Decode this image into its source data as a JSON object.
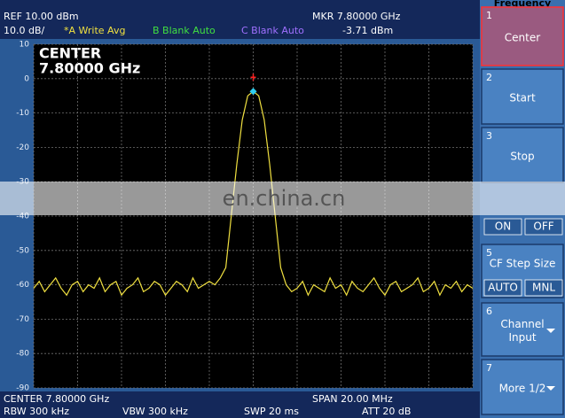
{
  "header": {
    "ref": "REF  10.00 dBm",
    "mkr": "MKR 7.80000 GHz",
    "scale": "10.0 dB/",
    "trace_a": "*A Write Avg",
    "trace_b": "B Blank Auto",
    "trace_c": "C Blank Auto",
    "mkr_value": "-3.71 dBm"
  },
  "chart_data": {
    "type": "line",
    "annotation": [
      "CENTER",
      "7.80000 GHz"
    ],
    "color": "#f0e040",
    "x": [
      7.79,
      7.79025,
      7.7905,
      7.79075,
      7.791,
      7.79125,
      7.7915,
      7.79175,
      7.792,
      7.79225,
      7.7925,
      7.79275,
      7.793,
      7.79325,
      7.7935,
      7.79375,
      7.794,
      7.79425,
      7.7945,
      7.79475,
      7.795,
      7.79525,
      7.7955,
      7.79575,
      7.796,
      7.79625,
      7.7965,
      7.79675,
      7.797,
      7.79725,
      7.7975,
      7.79775,
      7.798,
      7.79825,
      7.7985,
      7.79875,
      7.799,
      7.79925,
      7.7995,
      7.79975,
      7.8,
      7.80025,
      7.8005,
      7.80075,
      7.801,
      7.80125,
      7.8015,
      7.80175,
      7.802,
      7.80225,
      7.8025,
      7.80275,
      7.803,
      7.80325,
      7.8035,
      7.80375,
      7.804,
      7.80425,
      7.8045,
      7.80475,
      7.805,
      7.80525,
      7.8055,
      7.80575,
      7.806,
      7.80625,
      7.8065,
      7.80675,
      7.807,
      7.80725,
      7.8075,
      7.80775,
      7.808,
      7.80825,
      7.8085,
      7.80875,
      7.809,
      7.80925,
      7.8095,
      7.80975,
      7.81
    ],
    "values": [
      -61,
      -59,
      -62,
      -60,
      -58,
      -61,
      -63,
      -60,
      -59,
      -62,
      -60,
      -61,
      -58,
      -62,
      -60,
      -59,
      -63,
      -61,
      -60,
      -58,
      -62,
      -61,
      -59,
      -60,
      -63,
      -61,
      -59,
      -60,
      -62,
      -58,
      -61,
      -60,
      -59,
      -60,
      -58,
      -55,
      -40,
      -25,
      -12,
      -5,
      -3.71,
      -5,
      -12,
      -25,
      -40,
      -55,
      -60,
      -62,
      -61,
      -59,
      -63,
      -60,
      -61,
      -62,
      -58,
      -61,
      -60,
      -63,
      -59,
      -61,
      -62,
      -60,
      -58,
      -61,
      -63,
      -60,
      -59,
      -62,
      -61,
      -60,
      -58,
      -62,
      -61,
      -59,
      -63,
      -60,
      -61,
      -59,
      -62,
      -60,
      -61
    ],
    "marker": {
      "x": 7.8,
      "y": -3.71
    },
    "xlim": [
      7.79,
      7.81
    ],
    "ylim": [
      -90,
      10
    ],
    "yticks": [
      10,
      0,
      -10,
      -20,
      -30,
      -40,
      -50,
      -60,
      -70,
      -80,
      -90
    ],
    "grid": true
  },
  "footer": {
    "center": "CENTER 7.80000 GHz",
    "span": "SPAN 20.00 MHz",
    "rbw": "RBW 300 kHz",
    "vbw": "VBW 300 kHz",
    "swp": "SWP 20 ms",
    "att": "ATT 20 dB"
  },
  "softkeys": {
    "title": "Frequency",
    "keys": [
      {
        "number": "1",
        "label": [
          "Center"
        ]
      },
      {
        "number": "2",
        "label": [
          "Start"
        ]
      },
      {
        "number": "3",
        "label": [
          "Stop"
        ]
      },
      {
        "options": [
          "ON",
          "OFF"
        ]
      },
      {
        "number": "5",
        "label": [
          "CF Step Size"
        ],
        "options": [
          "AUTO",
          "MNL"
        ]
      },
      {
        "number": "6",
        "label": [
          "Channel",
          "Input"
        ]
      },
      {
        "number": "7",
        "label": [
          "More 1/2"
        ]
      }
    ]
  },
  "watermark": "en.china.cn"
}
